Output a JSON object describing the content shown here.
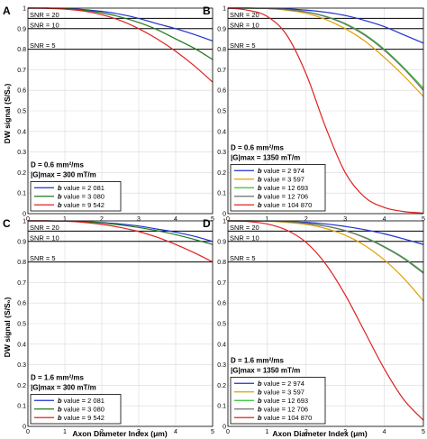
{
  "figure": {
    "ylabel": "DW signal (S/S₀)",
    "xlabel": "Axon Diameter Index (μm)"
  },
  "chart_data": [
    {
      "panel_label": "A",
      "type": "line",
      "xlim": [
        0,
        5
      ],
      "ylim": [
        0,
        1
      ],
      "xticks": [
        "0",
        "1",
        "2",
        "3",
        "4",
        "5"
      ],
      "yticks": [
        "0",
        "0.1",
        "0.2",
        "0.3",
        "0.4",
        "0.5",
        "0.6",
        "0.7",
        "0.8",
        "0.9",
        "1"
      ],
      "grid": true,
      "snr_lines": [
        {
          "label": "SNR = 20",
          "y": 0.95
        },
        {
          "label": "SNR = 10",
          "y": 0.9
        },
        {
          "label": "SNR = 5",
          "y": 0.8
        }
      ],
      "annotations": [
        "D = 0.6 mm²/ms",
        "|G|max = 300 mT/m"
      ],
      "legend_position": "lower-left",
      "series": [
        {
          "name": "b value = 2 081",
          "color": "#1f2fd0",
          "x": [
            0,
            0.5,
            1,
            1.5,
            2,
            2.5,
            3,
            3.5,
            4,
            4.5,
            5
          ],
          "values": [
            1,
            1,
            0.998,
            0.993,
            0.984,
            0.97,
            0.95,
            0.924,
            0.9,
            0.872,
            0.84
          ]
        },
        {
          "name": "b value = 3 080",
          "color": "#1b7a1b",
          "x": [
            0,
            0.5,
            1,
            1.5,
            2,
            2.5,
            3,
            3.5,
            4,
            4.5,
            5
          ],
          "values": [
            1,
            1,
            0.997,
            0.99,
            0.977,
            0.957,
            0.93,
            0.895,
            0.85,
            0.805,
            0.75
          ]
        },
        {
          "name": "b value = 9 542",
          "color": "#e02020",
          "x": [
            0,
            0.5,
            1,
            1.5,
            2,
            2.5,
            3,
            3.5,
            4,
            4.5,
            5
          ],
          "values": [
            1,
            0.999,
            0.995,
            0.986,
            0.968,
            0.94,
            0.9,
            0.85,
            0.79,
            0.72,
            0.64
          ]
        }
      ]
    },
    {
      "panel_label": "B",
      "type": "line",
      "xlim": [
        0,
        5
      ],
      "ylim": [
        0,
        1
      ],
      "xticks": [
        "0",
        "1",
        "2",
        "3",
        "4",
        "5"
      ],
      "yticks": [
        "0",
        "0.1",
        "0.2",
        "0.3",
        "0.4",
        "0.5",
        "0.6",
        "0.7",
        "0.8",
        "0.9",
        "1"
      ],
      "grid": true,
      "snr_lines": [
        {
          "label": "SNR = 20",
          "y": 0.95
        },
        {
          "label": "SNR = 10",
          "y": 0.9
        },
        {
          "label": "SNR = 5",
          "y": 0.8
        }
      ],
      "annotations": [
        "D = 0.6 mm²/ms",
        "|G|max = 1350 mT/m"
      ],
      "legend_position": "lower-left",
      "series": [
        {
          "name": "b value = 2 974",
          "color": "#1f2fd0",
          "x": [
            0,
            0.5,
            1,
            1.5,
            2,
            2.5,
            3,
            3.5,
            4,
            4.5,
            5
          ],
          "values": [
            1,
            1,
            0.999,
            0.996,
            0.99,
            0.98,
            0.964,
            0.94,
            0.91,
            0.87,
            0.83
          ]
        },
        {
          "name": "b value = 3 597",
          "color": "#e0a000",
          "x": [
            0,
            0.5,
            1,
            1.5,
            2,
            2.5,
            3,
            3.5,
            4,
            4.5,
            5
          ],
          "values": [
            1,
            1,
            0.998,
            0.99,
            0.975,
            0.945,
            0.9,
            0.84,
            0.76,
            0.67,
            0.57
          ]
        },
        {
          "name": "b value = 12 693",
          "color": "#2fc42f",
          "x": [
            0,
            0.5,
            1,
            1.5,
            2,
            2.5,
            3,
            3.5,
            4,
            4.5,
            5
          ],
          "values": [
            1,
            1,
            0.998,
            0.993,
            0.982,
            0.96,
            0.925,
            0.872,
            0.8,
            0.71,
            0.61
          ]
        },
        {
          "name": "b value = 12 706",
          "color": "#6e6e6e",
          "x": [
            0,
            0.5,
            1,
            1.5,
            2,
            2.5,
            3,
            3.5,
            4,
            4.5,
            5
          ],
          "values": [
            1,
            1,
            0.998,
            0.993,
            0.981,
            0.958,
            0.922,
            0.868,
            0.795,
            0.705,
            0.6
          ]
        },
        {
          "name": "b value = 104 870",
          "color": "#e02020",
          "x": [
            0,
            0.5,
            1,
            1.5,
            2,
            2.5,
            3,
            3.5,
            4,
            4.5,
            5
          ],
          "values": [
            1,
            0.99,
            0.96,
            0.87,
            0.68,
            0.42,
            0.2,
            0.08,
            0.03,
            0.01,
            0.003
          ]
        }
      ]
    },
    {
      "panel_label": "C",
      "type": "line",
      "xlim": [
        0,
        5
      ],
      "ylim": [
        0,
        1
      ],
      "xticks": [
        "0",
        "1",
        "2",
        "3",
        "4",
        "5"
      ],
      "yticks": [
        "0",
        "0.1",
        "0.2",
        "0.3",
        "0.4",
        "0.5",
        "0.6",
        "0.7",
        "0.8",
        "0.9",
        "1"
      ],
      "grid": true,
      "snr_lines": [
        {
          "label": "SNR = 20",
          "y": 0.95
        },
        {
          "label": "SNR = 10",
          "y": 0.9
        },
        {
          "label": "SNR = 5",
          "y": 0.8
        }
      ],
      "annotations": [
        "D = 1.6 mm²/ms",
        "|G|max = 300 mT/m"
      ],
      "legend_position": "lower-left",
      "series": [
        {
          "name": "b value = 2 081",
          "color": "#1f2fd0",
          "x": [
            0,
            0.5,
            1,
            1.5,
            2,
            2.5,
            3,
            3.5,
            4,
            4.5,
            5
          ],
          "values": [
            1,
            1,
            0.999,
            0.997,
            0.992,
            0.985,
            0.975,
            0.96,
            0.945,
            0.925,
            0.9
          ]
        },
        {
          "name": "b value = 3 080",
          "color": "#1b7a1b",
          "x": [
            0,
            0.5,
            1,
            1.5,
            2,
            2.5,
            3,
            3.5,
            4,
            4.5,
            5
          ],
          "values": [
            1,
            1,
            0.999,
            0.996,
            0.99,
            0.98,
            0.968,
            0.952,
            0.933,
            0.91,
            0.885
          ]
        },
        {
          "name": "b value = 9 542",
          "color": "#e02020",
          "x": [
            0,
            0.5,
            1,
            1.5,
            2,
            2.5,
            3,
            3.5,
            4,
            4.5,
            5
          ],
          "values": [
            1,
            1,
            0.998,
            0.993,
            0.983,
            0.968,
            0.948,
            0.92,
            0.885,
            0.845,
            0.8
          ]
        }
      ]
    },
    {
      "panel_label": "D",
      "type": "line",
      "xlim": [
        0,
        5
      ],
      "ylim": [
        0,
        1
      ],
      "xticks": [
        "0",
        "1",
        "2",
        "3",
        "4",
        "5"
      ],
      "yticks": [
        "0",
        "0.1",
        "0.2",
        "0.3",
        "0.4",
        "0.5",
        "0.6",
        "0.7",
        "0.8",
        "0.9",
        "1"
      ],
      "grid": true,
      "snr_lines": [
        {
          "label": "SNR = 20",
          "y": 0.95
        },
        {
          "label": "SNR = 10",
          "y": 0.9
        },
        {
          "label": "SNR = 5",
          "y": 0.8
        }
      ],
      "annotations": [
        "D = 1.6 mm²/ms",
        "|G|max = 1350 mT/m"
      ],
      "legend_position": "lower-left",
      "series": [
        {
          "name": "b value = 2 974",
          "color": "#1f2fd0",
          "x": [
            0,
            0.5,
            1,
            1.5,
            2,
            2.5,
            3,
            3.5,
            4,
            4.5,
            5
          ],
          "values": [
            1,
            1,
            0.999,
            0.997,
            0.993,
            0.985,
            0.973,
            0.957,
            0.937,
            0.912,
            0.885
          ]
        },
        {
          "name": "b value = 3 597",
          "color": "#e0a000",
          "x": [
            0,
            0.5,
            1,
            1.5,
            2,
            2.5,
            3,
            3.5,
            4,
            4.5,
            5
          ],
          "values": [
            1,
            1,
            0.998,
            0.993,
            0.983,
            0.963,
            0.93,
            0.88,
            0.81,
            0.72,
            0.61
          ]
        },
        {
          "name": "b value = 12 693",
          "color": "#2fc42f",
          "x": [
            0,
            0.5,
            1,
            1.5,
            2,
            2.5,
            3,
            3.5,
            4,
            4.5,
            5
          ],
          "values": [
            1,
            1,
            0.999,
            0.996,
            0.988,
            0.975,
            0.953,
            0.92,
            0.875,
            0.82,
            0.75
          ]
        },
        {
          "name": "b value = 12 706",
          "color": "#6e6e6e",
          "x": [
            0,
            0.5,
            1,
            1.5,
            2,
            2.5,
            3,
            3.5,
            4,
            4.5,
            5
          ],
          "values": [
            1,
            1,
            0.999,
            0.996,
            0.988,
            0.974,
            0.952,
            0.918,
            0.872,
            0.816,
            0.745
          ]
        },
        {
          "name": "b value = 104 870",
          "color": "#e02020",
          "x": [
            0,
            0.5,
            1,
            1.5,
            2,
            2.5,
            3,
            3.5,
            4,
            4.5,
            5
          ],
          "values": [
            1,
            0.997,
            0.985,
            0.955,
            0.895,
            0.79,
            0.64,
            0.46,
            0.28,
            0.13,
            0.03
          ]
        }
      ]
    }
  ]
}
